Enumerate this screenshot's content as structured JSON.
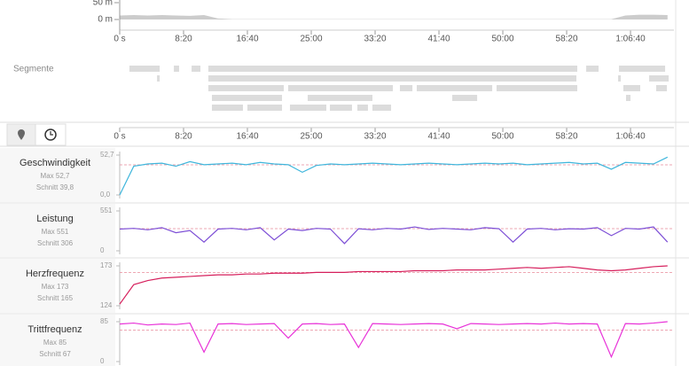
{
  "time_axis": {
    "xlim": [
      0,
      4340
    ],
    "xticks": [
      {
        "value": 0,
        "label": "0 s"
      },
      {
        "value": 500,
        "label": "8:20"
      },
      {
        "value": 1000,
        "label": "16:40"
      },
      {
        "value": 1500,
        "label": "25:00"
      },
      {
        "value": 2000,
        "label": "33:20"
      },
      {
        "value": 2500,
        "label": "41:40"
      },
      {
        "value": 3000,
        "label": "50:00"
      },
      {
        "value": 3500,
        "label": "58:20"
      },
      {
        "value": 4000,
        "label": "1:06:40"
      }
    ],
    "samples": [
      0,
      110,
      220,
      330,
      440,
      550,
      660,
      770,
      880,
      990,
      1100,
      1210,
      1320,
      1430,
      1540,
      1650,
      1760,
      1870,
      1980,
      2090,
      2200,
      2310,
      2420,
      2530,
      2640,
      2750,
      2860,
      2970,
      3080,
      3190,
      3300,
      3410,
      3520,
      3630,
      3740,
      3850,
      3960,
      4070,
      4180,
      4290
    ]
  },
  "elevation": {
    "ylim": [
      0,
      50
    ],
    "yticks": [
      {
        "value": 50,
        "label": "50 m"
      },
      {
        "value": 0,
        "label": "0 m"
      }
    ],
    "color": "#cccccc",
    "values": [
      12,
      13,
      12,
      13,
      12,
      11,
      13,
      3,
      1,
      1,
      1,
      1,
      1,
      1,
      1,
      1,
      1,
      1,
      1,
      1,
      1,
      1,
      1,
      1,
      1,
      1,
      1,
      1,
      1,
      1,
      1,
      1,
      1,
      1,
      1,
      1,
      12,
      14,
      14,
      13
    ]
  },
  "segments": {
    "title": "Segmente",
    "rows": [
      [
        [
          76,
          313
        ],
        [
          424,
          465
        ],
        [
          563,
          632
        ],
        [
          694,
          3583
        ],
        [
          3653,
          3750
        ],
        [
          3910,
          4271
        ]
      ],
      [
        [
          292,
          313
        ],
        [
          694,
          3576
        ],
        [
          3903,
          3924
        ],
        [
          4146,
          4299
        ]
      ],
      [
        [
          694,
          1285
        ],
        [
          1319,
          2139
        ],
        [
          2194,
          2292
        ],
        [
          2326,
          2917
        ],
        [
          2951,
          3583
        ],
        [
          3944,
          4076
        ],
        [
          4201,
          4285
        ]
      ],
      [
        [
          722,
          1271
        ],
        [
          1472,
          1979
        ],
        [
          2604,
          2799
        ],
        [
          3965,
          4000
        ]
      ],
      [
        [
          722,
          965
        ],
        [
          1000,
          1271
        ],
        [
          1333,
          1618
        ],
        [
          1646,
          1819
        ],
        [
          1861,
          1944
        ],
        [
          1979,
          2125
        ]
      ]
    ]
  },
  "panels": [
    {
      "name": "Geschwindigkeit",
      "max": "Max 52,7",
      "avg": {
        "value": 39.8,
        "label": "Schnitt 39,8"
      },
      "color": "#3fb6dc",
      "ylim": [
        0,
        52.7
      ],
      "yticks": [
        {
          "value": 52.7,
          "label": "52,7"
        },
        {
          "value": 0,
          "label": "0,0"
        }
      ],
      "values": [
        0,
        38,
        41,
        42,
        38,
        44,
        40,
        41,
        42,
        40,
        43,
        41,
        40,
        30,
        39,
        41,
        40,
        41,
        42,
        41,
        40,
        41,
        42,
        41,
        40,
        41,
        42,
        41,
        42,
        40,
        41,
        42,
        43,
        41,
        42,
        34,
        43,
        42,
        41,
        50
      ]
    },
    {
      "name": "Leistung",
      "max": "Max 551",
      "avg": {
        "value": 306,
        "label": "Schnitt 306"
      },
      "color": "#7d4fd6",
      "ylim": [
        0,
        551
      ],
      "yticks": [
        551,
        0
      ],
      "values": [
        300,
        310,
        290,
        320,
        250,
        280,
        120,
        300,
        310,
        290,
        320,
        150,
        300,
        280,
        310,
        300,
        100,
        305,
        290,
        310,
        300,
        330,
        295,
        310,
        300,
        290,
        320,
        305,
        120,
        300,
        310,
        290,
        305,
        300,
        320,
        210,
        310,
        300,
        330,
        120
      ]
    },
    {
      "name": "Herzfrequenz",
      "max": "Max 173",
      "avg": {
        "value": 165,
        "label": "Schnitt 165"
      },
      "color": "#d61f5c",
      "ylim": [
        124,
        173
      ],
      "yticks": [
        173,
        124
      ],
      "values": [
        126,
        150,
        155,
        158,
        159,
        160,
        161,
        162,
        162,
        163,
        163,
        164,
        164,
        164,
        165,
        165,
        165,
        166,
        166,
        166,
        166,
        167,
        167,
        167,
        168,
        168,
        168,
        169,
        170,
        171,
        170,
        171,
        172,
        170,
        168,
        167,
        168,
        170,
        172,
        173
      ]
    },
    {
      "name": "Trittfrequenz",
      "max": "Max 85",
      "avg": {
        "value": 67,
        "label": "Schnitt 67"
      },
      "color": "#e832d8",
      "ylim": [
        0,
        85
      ],
      "yticks": [
        85,
        0
      ],
      "values": [
        80,
        82,
        78,
        80,
        79,
        82,
        20,
        80,
        81,
        79,
        80,
        81,
        50,
        80,
        81,
        79,
        80,
        30,
        81,
        80,
        79,
        80,
        81,
        80,
        70,
        81,
        80,
        79,
        80,
        81,
        80,
        82,
        80,
        81,
        80,
        10,
        81,
        80,
        82,
        85
      ]
    }
  ]
}
